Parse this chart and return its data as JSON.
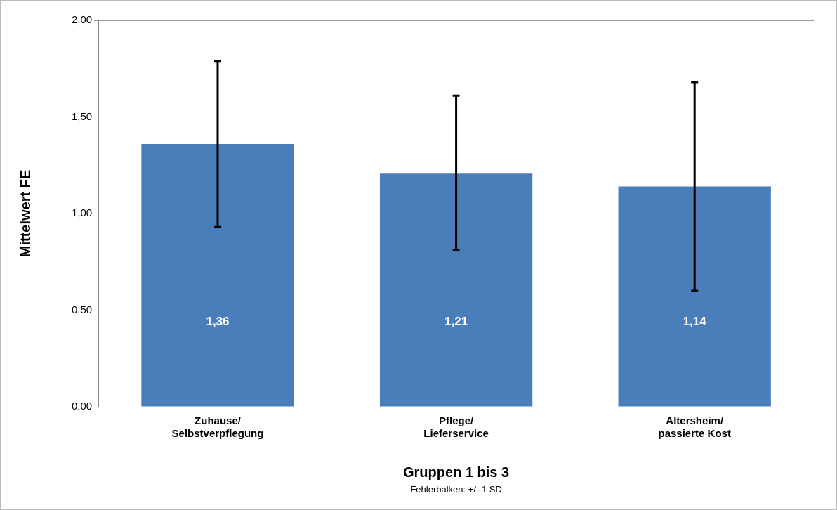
{
  "chart_data": {
    "type": "bar",
    "xlabel": "Gruppen 1 bis 3",
    "ylabel": "Mittelwert FE",
    "categories": [
      "Zuhause/\nSelbstverpflegung",
      "Pflege/\nLieferservice",
      "Altersheim/\npassierte Kost"
    ],
    "values": [
      1.36,
      1.21,
      1.14
    ],
    "color": "#4a7ebb",
    "errors": [
      0.43,
      0.4,
      0.54
    ],
    "value_labels": [
      "1,36",
      "1,21",
      "1,14"
    ],
    "ylim": [
      0,
      2
    ],
    "yticks": [
      {
        "value": 0,
        "label": "0,00"
      },
      {
        "value": 0.5,
        "label": "0,50"
      },
      {
        "value": 1,
        "label": "1,00"
      },
      {
        "value": 1.5,
        "label": "1,50"
      },
      {
        "value": 2,
        "label": "2,00"
      }
    ],
    "grid": "y",
    "legend": false,
    "annotations": [
      "Fehlerbalken: +/- 1 SD"
    ]
  }
}
